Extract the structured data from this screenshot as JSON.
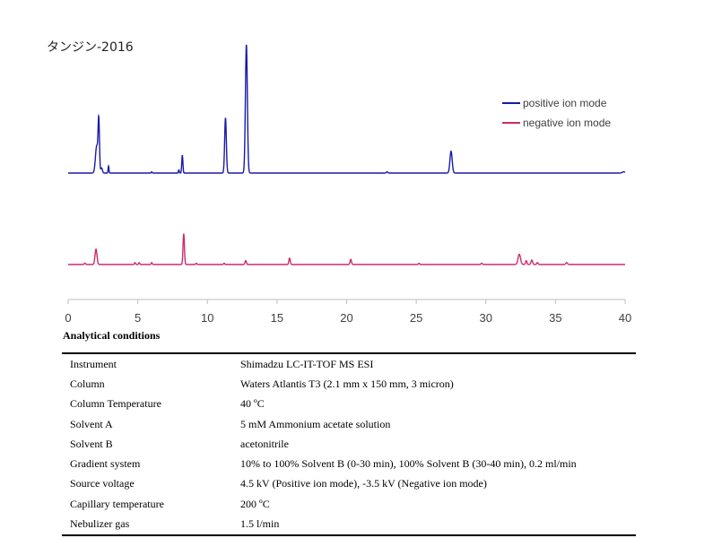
{
  "chart_data": {
    "type": "line",
    "title": "タンジン-2016",
    "xlim": [
      0,
      40
    ],
    "x_ticks": [
      "0",
      "5",
      "10",
      "15",
      "20",
      "25",
      "30",
      "35",
      "40"
    ],
    "grid": false,
    "legend_position": "top-right",
    "series": [
      {
        "name": "positive ion mode",
        "color": "#1a1aa8",
        "baseline_level": 0,
        "peaks": [
          {
            "rt": 2.05,
            "height": 0.21,
            "width": 0.09
          },
          {
            "rt": 2.2,
            "height": 0.39,
            "width": 0.05
          },
          {
            "rt": 2.4,
            "height": 0.04,
            "width": 0.06
          },
          {
            "rt": 2.9,
            "height": 0.055,
            "width": 0.03
          },
          {
            "rt": 6.0,
            "height": 0.01,
            "width": 0.03
          },
          {
            "rt": 7.95,
            "height": 0.025,
            "width": 0.03
          },
          {
            "rt": 8.2,
            "height": 0.14,
            "width": 0.04
          },
          {
            "rt": 11.3,
            "height": 0.43,
            "width": 0.06
          },
          {
            "rt": 12.8,
            "height": 1.0,
            "width": 0.07
          },
          {
            "rt": 22.9,
            "height": 0.01,
            "width": 0.05
          },
          {
            "rt": 27.5,
            "height": 0.17,
            "width": 0.08
          },
          {
            "rt": 39.9,
            "height": 0.01,
            "width": 0.1
          }
        ]
      },
      {
        "name": "negative ion mode",
        "color": "#cc2a6e",
        "baseline_level": 0,
        "peaks": [
          {
            "rt": 1.2,
            "height": 0.01,
            "width": 0.05
          },
          {
            "rt": 2.0,
            "height": 0.12,
            "width": 0.07
          },
          {
            "rt": 4.8,
            "height": 0.015,
            "width": 0.04
          },
          {
            "rt": 5.1,
            "height": 0.015,
            "width": 0.04
          },
          {
            "rt": 6.0,
            "height": 0.015,
            "width": 0.04
          },
          {
            "rt": 8.3,
            "height": 0.24,
            "width": 0.05
          },
          {
            "rt": 9.2,
            "height": 0.01,
            "width": 0.04
          },
          {
            "rt": 11.2,
            "height": 0.01,
            "width": 0.04
          },
          {
            "rt": 12.75,
            "height": 0.03,
            "width": 0.05
          },
          {
            "rt": 15.9,
            "height": 0.05,
            "width": 0.05
          },
          {
            "rt": 20.3,
            "height": 0.04,
            "width": 0.05
          },
          {
            "rt": 25.2,
            "height": 0.01,
            "width": 0.04
          },
          {
            "rt": 29.7,
            "height": 0.01,
            "width": 0.05
          },
          {
            "rt": 32.4,
            "height": 0.08,
            "width": 0.09
          },
          {
            "rt": 32.9,
            "height": 0.03,
            "width": 0.05
          },
          {
            "rt": 33.3,
            "height": 0.035,
            "width": 0.06
          },
          {
            "rt": 33.7,
            "height": 0.015,
            "width": 0.05
          },
          {
            "rt": 35.8,
            "height": 0.015,
            "width": 0.06
          }
        ]
      }
    ]
  },
  "conditions": {
    "title": "Analytical conditions",
    "rows": [
      {
        "param": "Instrument",
        "value": "Shimadzu LC-IT-TOF MS ESI"
      },
      {
        "param": "Column",
        "value": "Waters Atlantis T3 (2.1 mm x 150 mm, 3 micron)"
      },
      {
        "param": "Column Temperature",
        "value": "40 ºC"
      },
      {
        "param": "Solvent A",
        "value": "5 mM Ammonium acetate solution"
      },
      {
        "param": "Solvent B",
        "value": "acetonitrile"
      },
      {
        "param": "Gradient system",
        "value": "10% to 100% Solvent B (0-30 min), 100% Solvent B (30-40 min), 0.2 ml/min"
      },
      {
        "param": "Source voltage",
        "value": "4.5 kV (Positive ion mode), -3.5 kV (Negative ion mode)"
      },
      {
        "param": "Capillary temperature",
        "value": "200 ºC"
      },
      {
        "param": "Nebulizer gas",
        "value": "1.5 l/min"
      }
    ]
  }
}
